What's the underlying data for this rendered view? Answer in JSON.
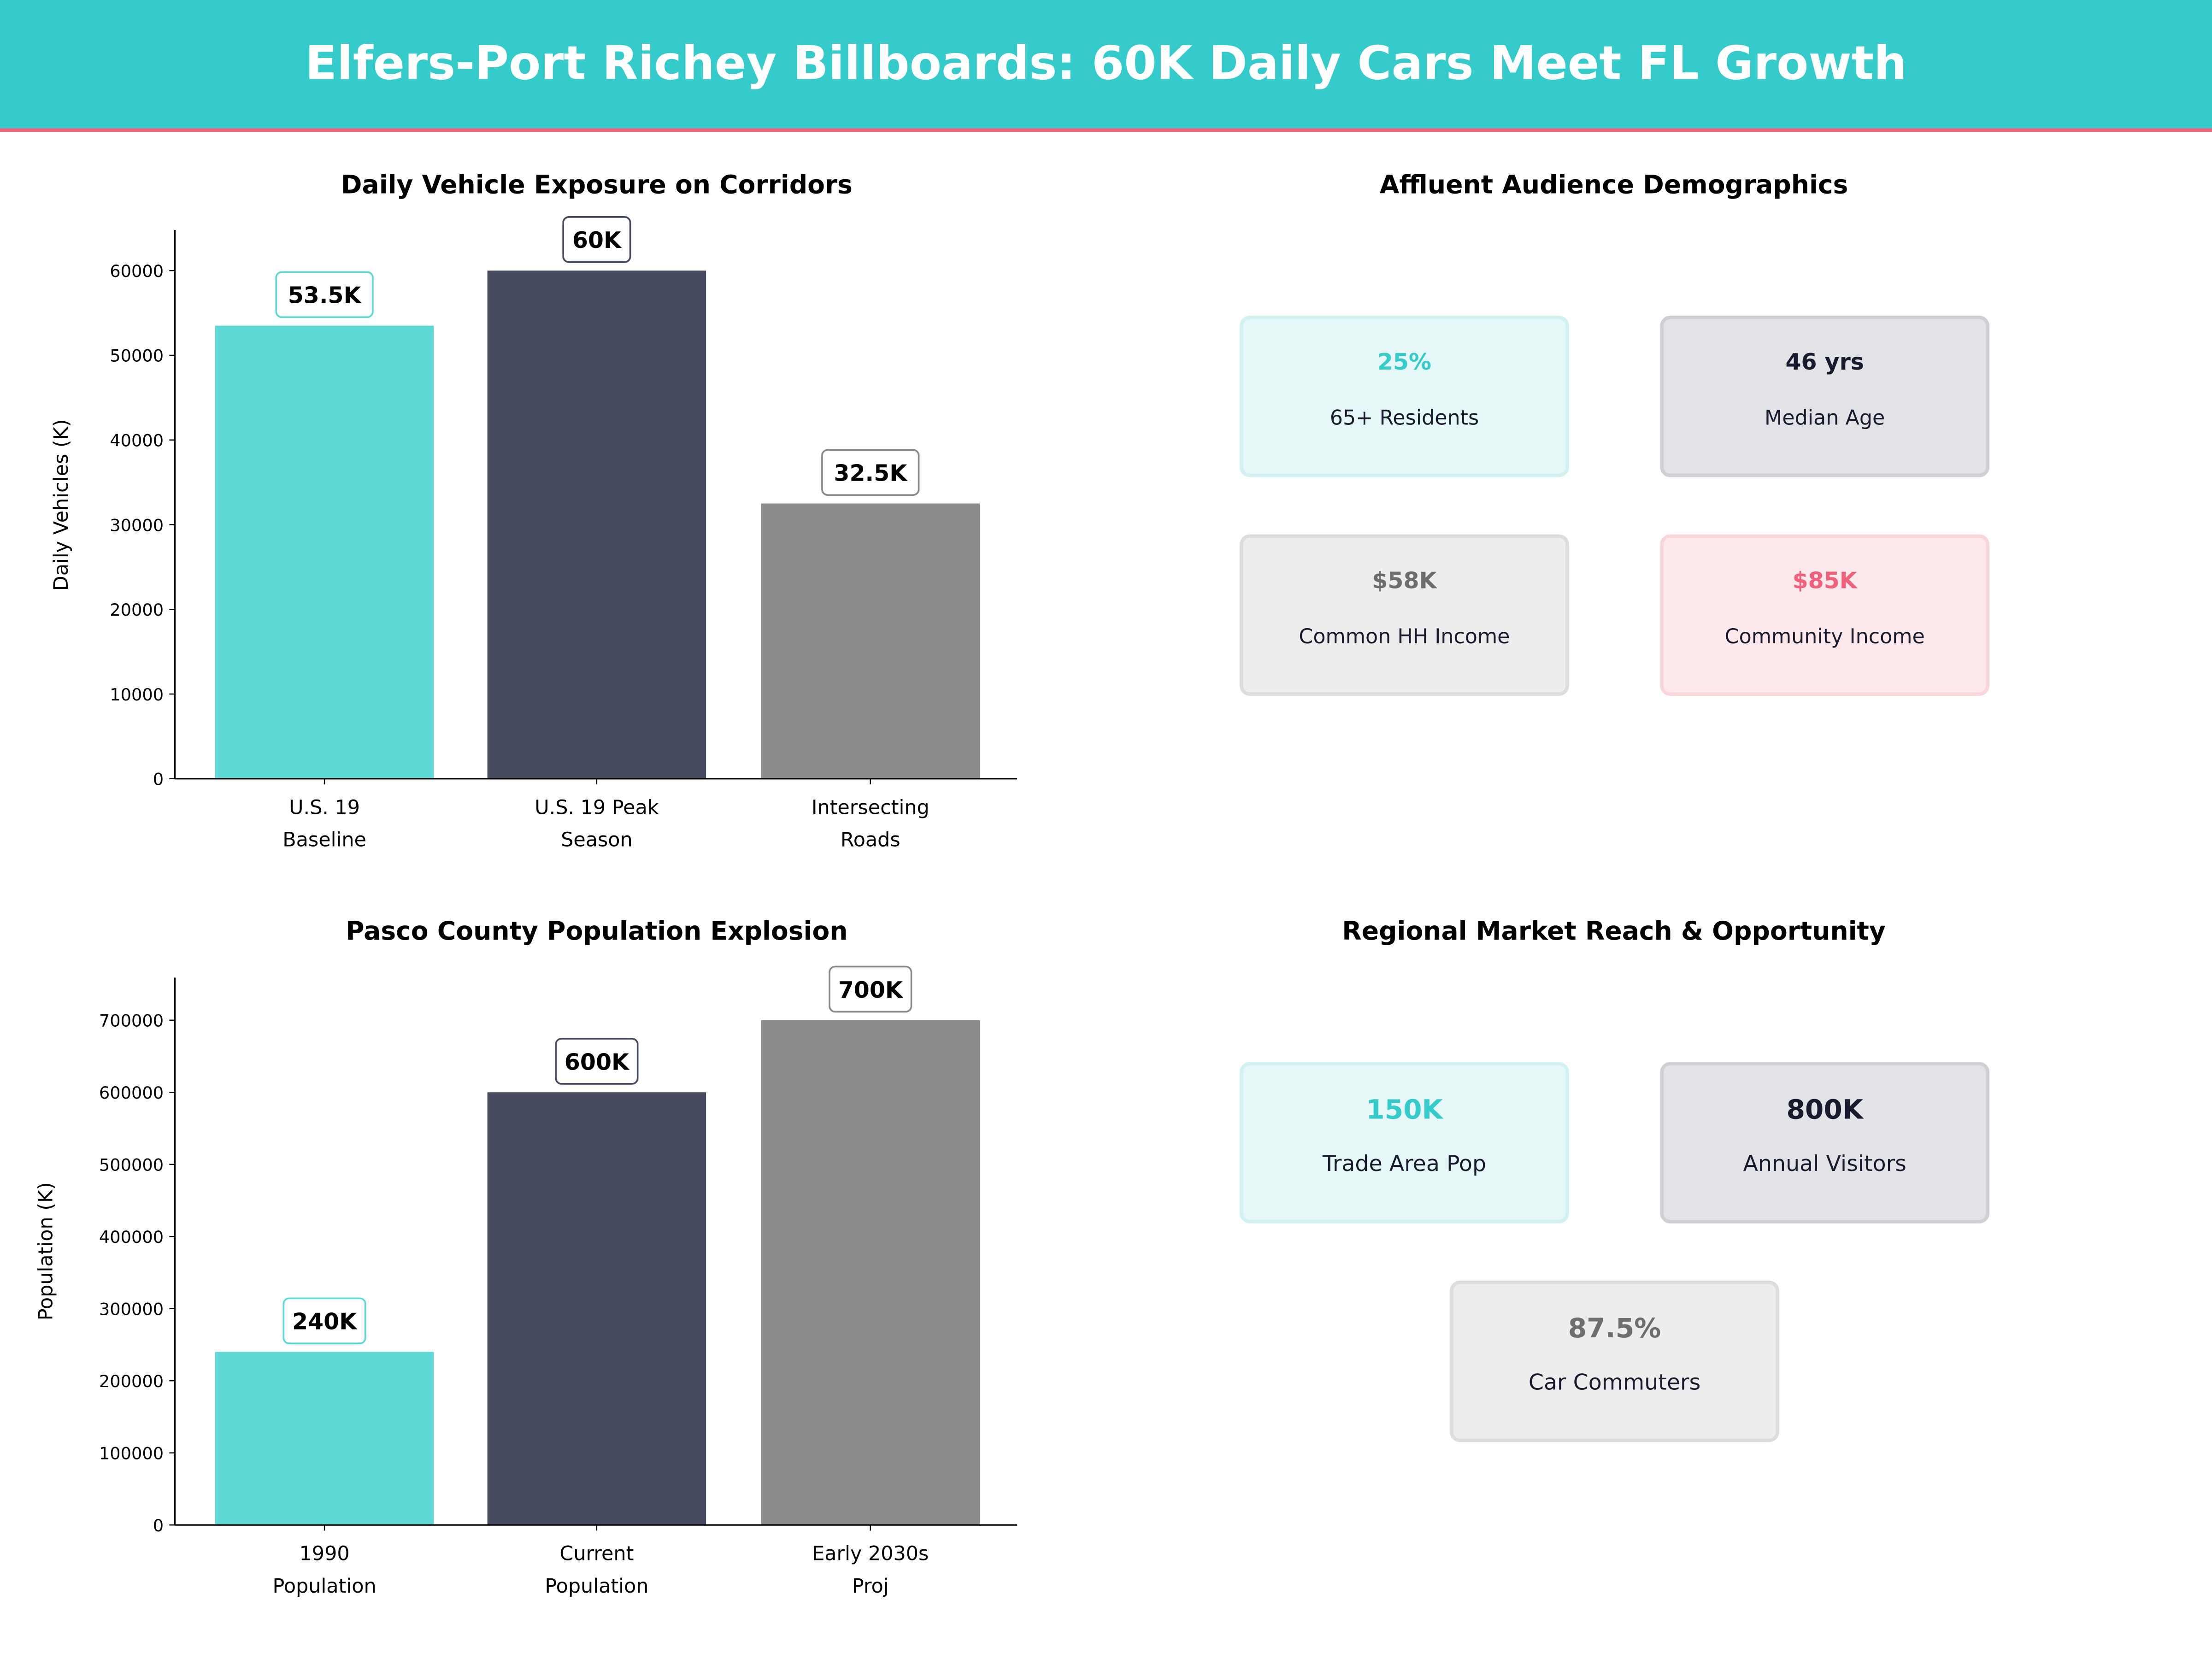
{
  "header": {
    "title": "Elfers-Port Richey Billboards: 60K Daily Cars Meet FL Growth",
    "bg": "#35CBCB",
    "rule": "#F0607A"
  },
  "chart_data": [
    {
      "type": "bar",
      "title": "Daily Vehicle Exposure on Corridors",
      "xlabel": "",
      "ylabel": "Daily Vehicles (K)",
      "categories": [
        [
          "U.S. 19",
          "Baseline"
        ],
        [
          "U.S. 19 Peak",
          "Season"
        ],
        [
          "Intersecting",
          "Roads"
        ]
      ],
      "values": [
        53500,
        60000,
        32500
      ],
      "data_labels": [
        "53.5K",
        "60K",
        "32.5K"
      ],
      "colors": [
        "#5DD8D4",
        "#454A5F",
        "#8A8A8A"
      ],
      "label_borders": [
        "#5DD8D4",
        "#454A5F",
        "#8A8A8A"
      ],
      "ylim": [
        0,
        64800
      ],
      "yticks": [
        0,
        10000,
        20000,
        30000,
        40000,
        50000,
        60000
      ],
      "grid": false
    },
    {
      "type": "bar",
      "title": "Pasco County Population Explosion",
      "xlabel": "",
      "ylabel": "Population (K)",
      "categories": [
        [
          "1990",
          "Population"
        ],
        [
          "Current",
          "Population"
        ],
        [
          "Early 2030s",
          "Proj"
        ]
      ],
      "values": [
        240000,
        600000,
        700000
      ],
      "data_labels": [
        "240K",
        "600K",
        "700K"
      ],
      "colors": [
        "#5DD8D4",
        "#454A5F",
        "#8A8A8A"
      ],
      "label_borders": [
        "#5DD8D4",
        "#454A5F",
        "#8A8A8A"
      ],
      "ylim": [
        0,
        759000
      ],
      "yticks": [
        0,
        100000,
        200000,
        300000,
        400000,
        500000,
        600000,
        700000
      ],
      "grid": false
    }
  ],
  "demographics": {
    "title": "Affluent Audience Demographics",
    "cards": [
      {
        "value": "25%",
        "label": "65+ Residents",
        "value_color": "#35CBCB",
        "bg": "#E5F7F7",
        "border": "#D2F2F2"
      },
      {
        "value": "46 yrs",
        "label": "Median Age",
        "value_color": "#1a1a2e",
        "bg": "#E2E3E7",
        "border": "#CFCFD6"
      },
      {
        "value": "$58K",
        "label": "Common HH Income",
        "value_color": "#6E6E6E",
        "bg": "#EDEDED",
        "border": "#DDDDDD"
      },
      {
        "value": "$85K",
        "label": "Community Income",
        "value_color": "#F0607A",
        "bg": "#FDE9EC",
        "border": "#F9D6DC"
      }
    ]
  },
  "market": {
    "title": "Regional Market Reach & Opportunity",
    "cards": [
      {
        "value": "150K",
        "label": "Trade Area Pop",
        "value_color": "#35CBCB",
        "bg": "#E5F7F7",
        "border": "#D2F2F2"
      },
      {
        "value": "800K",
        "label": "Annual Visitors",
        "value_color": "#1a1a2e",
        "bg": "#E2E3E7",
        "border": "#CFCFD6"
      },
      {
        "value": "87.5%",
        "label": "Car Commuters",
        "value_color": "#6E6E6E",
        "bg": "#EDEDED",
        "border": "#DDDDDD"
      }
    ]
  }
}
